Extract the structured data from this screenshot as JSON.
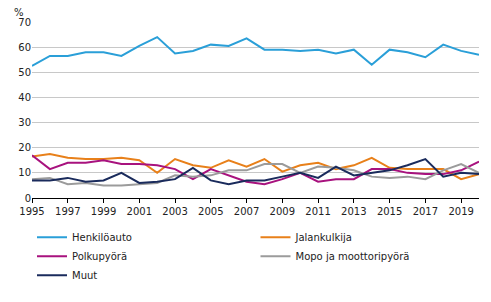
{
  "chart_data": {
    "type": "line",
    "y_label": "%",
    "x": [
      1995,
      1996,
      1997,
      1998,
      1999,
      2000,
      2001,
      2002,
      2003,
      2004,
      2005,
      2006,
      2007,
      2008,
      2009,
      2010,
      2011,
      2012,
      2013,
      2014,
      2015,
      2016,
      2017,
      2018,
      2019,
      2020
    ],
    "xlim": [
      1995,
      2020
    ],
    "xticks": [
      1995,
      1997,
      1999,
      2001,
      2003,
      2005,
      2007,
      2009,
      2011,
      2013,
      2015,
      2017,
      2019
    ],
    "ylim": [
      0,
      70
    ],
    "yticks": [
      0,
      10,
      20,
      30,
      40,
      50,
      60,
      70
    ],
    "grid": true,
    "legend": "bottom",
    "series": [
      {
        "name": "Henkilöauto",
        "color": "#2a9fd8",
        "values": [
          52.5,
          56.5,
          56.5,
          58,
          58,
          56.5,
          60.5,
          64,
          57.5,
          58.5,
          61,
          60.5,
          63.5,
          59,
          59,
          58.5,
          59,
          57.5,
          59,
          53,
          59,
          58,
          56,
          61,
          58.5,
          57
        ]
      },
      {
        "name": "Jalankulkija",
        "color": "#e8801a",
        "values": [
          16.5,
          17.5,
          16,
          15.5,
          15.5,
          16,
          15,
          10,
          15.5,
          13,
          12,
          15,
          12.5,
          15.5,
          10.5,
          13,
          14,
          11.5,
          13,
          16,
          12,
          11.5,
          11.5,
          11.5,
          7.5,
          9.5
        ]
      },
      {
        "name": "Polkupyörä",
        "color": "#a8127e",
        "values": [
          17,
          11.5,
          14,
          14,
          15,
          13.5,
          13.5,
          13,
          11.5,
          7.5,
          11.5,
          9,
          6.5,
          5.5,
          7.5,
          10,
          6.5,
          7.5,
          7.5,
          11.5,
          11.5,
          10,
          9.5,
          9.5,
          11,
          14.5
        ]
      },
      {
        "name": "Mopo ja moottoripyörä",
        "color": "#9b9b9b",
        "values": [
          7.5,
          8,
          5.5,
          6,
          5,
          5,
          5.5,
          6,
          9,
          8.5,
          9,
          11,
          11,
          13.5,
          13.5,
          10,
          12.5,
          12,
          11,
          8.5,
          8,
          8.5,
          7.5,
          11,
          13.5,
          10
        ]
      },
      {
        "name": "Muut",
        "color": "#1a2b5c",
        "values": [
          7,
          7,
          8,
          6.5,
          7,
          10,
          6,
          6.5,
          7.5,
          12,
          7,
          5.5,
          7,
          7,
          8.5,
          10,
          8,
          12.5,
          9,
          10,
          11,
          13,
          15.5,
          8.5,
          10,
          9.5
        ]
      }
    ]
  }
}
